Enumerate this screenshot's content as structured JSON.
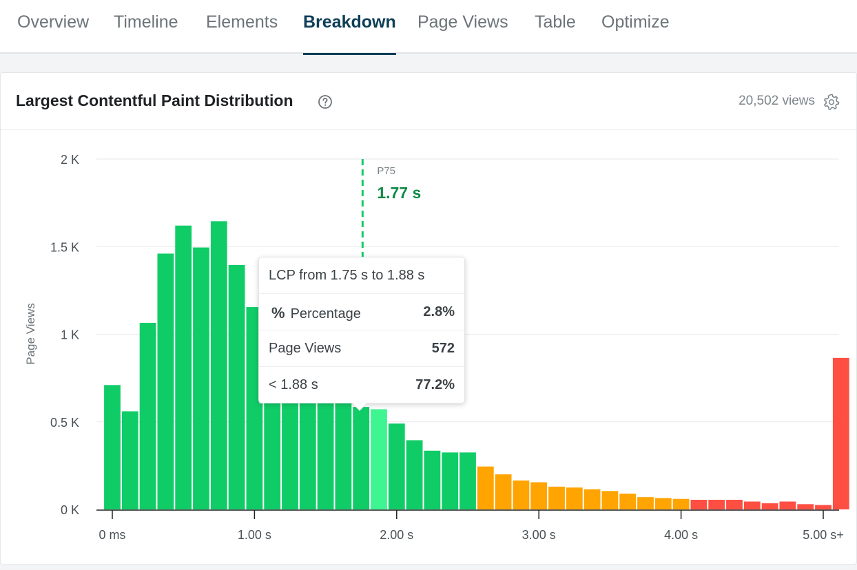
{
  "tabs": [
    {
      "label": "Overview"
    },
    {
      "label": "Timeline"
    },
    {
      "label": "Elements"
    },
    {
      "label": "Breakdown",
      "active": true
    },
    {
      "label": "Page Views"
    },
    {
      "label": "Table"
    },
    {
      "label": "Optimize"
    }
  ],
  "card": {
    "title": "Largest Contentful Paint Distribution",
    "views": "20,502 views",
    "help_icon": "question-circle-icon",
    "settings_icon": "gear-icon"
  },
  "colors": {
    "good": "#10cc67",
    "good_hover": "#3ef592",
    "needs_improvement": "#ffa400",
    "poor": "#ff4e42",
    "p75_line": "#10cc67",
    "p75_value": "#0e8a45"
  },
  "tooltip": {
    "title": "LCP from 1.75 s to 1.88 s",
    "percentage_label": "Percentage",
    "percentage_value": "2.8%",
    "page_views_label": "Page Views",
    "page_views_value": "572",
    "cumulative_label": "< 1.88 s",
    "cumulative_value": "77.2%"
  },
  "chart_data": {
    "type": "bar",
    "ylabel": "Page Views",
    "ylim": [
      0,
      2000
    ],
    "y_ticks": [
      {
        "value": 0,
        "label": "0 K"
      },
      {
        "value": 500,
        "label": "0.5 K"
      },
      {
        "value": 1000,
        "label": "1 K"
      },
      {
        "value": 1500,
        "label": "1.5 K"
      },
      {
        "value": 2000,
        "label": "2 K"
      }
    ],
    "xlim": [
      0,
      5.125
    ],
    "x_ticks": [
      {
        "value": 0,
        "label": "0 ms"
      },
      {
        "value": 1,
        "label": "1.00 s"
      },
      {
        "value": 2,
        "label": "2.00 s"
      },
      {
        "value": 3,
        "label": "3.00 s"
      },
      {
        "value": 4,
        "label": "4.00 s"
      },
      {
        "value": 5,
        "label": "5.00 s+"
      }
    ],
    "bin_width_s": 0.125,
    "bins_start_s": -0.0625,
    "values": [
      710,
      560,
      1065,
      1460,
      1620,
      1495,
      1645,
      1395,
      1155,
      1000,
      860,
      760,
      690,
      620,
      585,
      572,
      490,
      395,
      335,
      325,
      325,
      245,
      200,
      165,
      155,
      130,
      125,
      115,
      105,
      90,
      70,
      65,
      60,
      55,
      55,
      55,
      45,
      35,
      45,
      30,
      25,
      865
    ],
    "categories_color": [
      "good",
      "good",
      "good",
      "good",
      "good",
      "good",
      "good",
      "good",
      "good",
      "good",
      "good",
      "good",
      "good",
      "good",
      "good",
      "good_hover",
      "good",
      "good",
      "good",
      "good",
      "good",
      "needs_improvement",
      "needs_improvement",
      "needs_improvement",
      "needs_improvement",
      "needs_improvement",
      "needs_improvement",
      "needs_improvement",
      "needs_improvement",
      "needs_improvement",
      "needs_improvement",
      "needs_improvement",
      "needs_improvement",
      "poor",
      "poor",
      "poor",
      "poor",
      "poor",
      "poor",
      "poor",
      "poor",
      "poor"
    ],
    "hovered_index": 15,
    "annotation": {
      "label": "P75",
      "value": "1.77 s",
      "x": 1.77
    }
  }
}
